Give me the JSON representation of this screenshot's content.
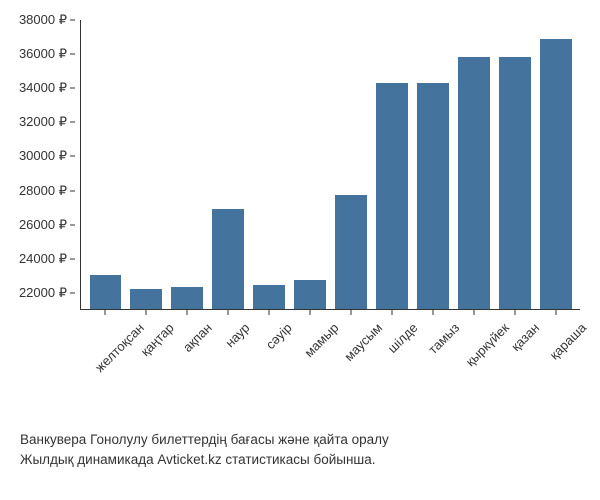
{
  "chart": {
    "type": "bar",
    "categories": [
      "желтоқсан",
      "қаңтар",
      "ақпан",
      "наур",
      "сәуір",
      "мамыр",
      "маусым",
      "шілде",
      "тамыз",
      "қыркүйек",
      "қазан",
      "қараша"
    ],
    "values": [
      23000,
      22200,
      22300,
      26900,
      22400,
      22700,
      27700,
      34300,
      34300,
      35800,
      35800,
      36900
    ],
    "bar_color": "#44749d",
    "axis_color": "#333333",
    "ylim": [
      21000,
      38000
    ],
    "yticks": [
      22000,
      24000,
      26000,
      28000,
      30000,
      32000,
      34000,
      36000,
      38000
    ],
    "ytick_labels": [
      "22000 ₽",
      "24000 ₽",
      "26000 ₽",
      "28000 ₽",
      "30000 ₽",
      "32000 ₽",
      "34000 ₽",
      "36000 ₽",
      "38000 ₽"
    ],
    "background_color": "#ffffff",
    "label_fontsize": 13,
    "x_label_rotation": -45,
    "bar_width": 0.78
  },
  "caption": {
    "line1": "Ванкувера Гонолулу билеттердің бағасы және қайта оралу",
    "line2": "Жылдық динамикада Avticket.kz статистикасы бойынша."
  }
}
